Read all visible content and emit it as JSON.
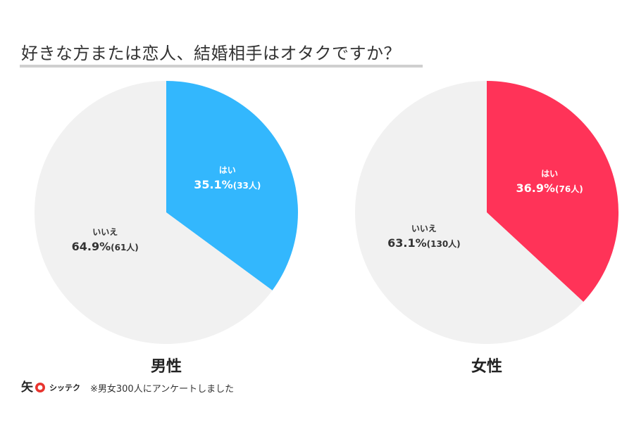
{
  "title": "好きな方または恋人、結婚相手はオタクですか？",
  "footer": {
    "brand": "シッテク",
    "note": "※男女300人にアンケートしました"
  },
  "colors": {
    "background_slice": "#f1f1f1",
    "male_yes": "#33b7fd",
    "female_yes": "#ff3358",
    "text_dark": "#333333",
    "text_light": "#ffffff",
    "logo_red": "#e8342e"
  },
  "chart_data": [
    {
      "type": "pie",
      "title": "男性",
      "slices": [
        {
          "label": "はい",
          "percent": 35.1,
          "count_label": "(33人)",
          "percent_label": "35.1%",
          "color": "#33b7fd"
        },
        {
          "label": "いいえ",
          "percent": 64.9,
          "count_label": "(61人)",
          "percent_label": "64.9%",
          "color": "#f1f1f1"
        }
      ]
    },
    {
      "type": "pie",
      "title": "女性",
      "slices": [
        {
          "label": "はい",
          "percent": 36.9,
          "count_label": "(76人)",
          "percent_label": "36.9%",
          "color": "#ff3358"
        },
        {
          "label": "いいえ",
          "percent": 63.1,
          "count_label": "(130人)",
          "percent_label": "63.1%",
          "color": "#f1f1f1"
        }
      ]
    }
  ]
}
